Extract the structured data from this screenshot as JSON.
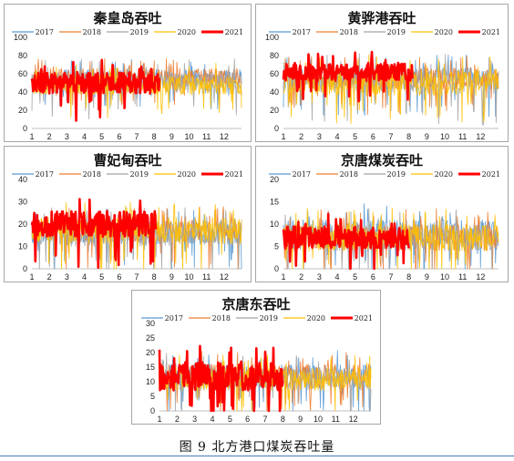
{
  "chart_data": [
    {
      "type": "line",
      "title": "秦皇岛吞吐",
      "categories": [
        "1",
        "2",
        "3",
        "4",
        "5",
        "6",
        "7",
        "8",
        "9",
        "10",
        "11",
        "12"
      ],
      "ylim": [
        0,
        100
      ],
      "yticks": [
        0,
        20,
        40,
        60,
        80,
        100
      ],
      "grid": false,
      "legend_position": "top",
      "series": [
        {
          "name": "2017",
          "color": "#5b9bd5",
          "typical": 55,
          "spread": 10,
          "end_month": 13
        },
        {
          "name": "2018",
          "color": "#ed7d31",
          "typical": 57,
          "spread": 9,
          "end_month": 13
        },
        {
          "name": "2019",
          "color": "#a5a5a5",
          "typical": 50,
          "spread": 12,
          "end_month": 13
        },
        {
          "name": "2020",
          "color": "#ffc000",
          "typical": 48,
          "spread": 11,
          "end_month": 13
        },
        {
          "name": "2021",
          "color": "#ff0000",
          "typical": 50,
          "spread": 12,
          "end_month": 8.3
        }
      ]
    },
    {
      "type": "line",
      "title": "黄骅港吞吐",
      "categories": [
        "1",
        "2",
        "3",
        "4",
        "5",
        "6",
        "7",
        "8",
        "9",
        "10",
        "11",
        "12"
      ],
      "ylim": [
        0,
        100
      ],
      "yticks": [
        0,
        20,
        40,
        60,
        80,
        100
      ],
      "grid": false,
      "legend_position": "top",
      "series": [
        {
          "name": "2017",
          "color": "#5b9bd5",
          "typical": 55,
          "spread": 12,
          "end_month": 13
        },
        {
          "name": "2018",
          "color": "#ed7d31",
          "typical": 55,
          "spread": 12,
          "end_month": 13
        },
        {
          "name": "2019",
          "color": "#a5a5a5",
          "typical": 52,
          "spread": 14,
          "end_month": 13
        },
        {
          "name": "2020",
          "color": "#ffc000",
          "typical": 50,
          "spread": 14,
          "end_month": 13
        },
        {
          "name": "2021",
          "color": "#ff0000",
          "typical": 62,
          "spread": 10,
          "end_month": 8.2
        }
      ]
    },
    {
      "type": "line",
      "title": "曹妃甸吞吐",
      "categories": [
        "1",
        "2",
        "3",
        "4",
        "5",
        "6",
        "7",
        "8",
        "9",
        "10",
        "11",
        "12"
      ],
      "ylim": [
        0,
        40
      ],
      "yticks": [
        0,
        10,
        20,
        30,
        40
      ],
      "grid": false,
      "legend_position": "top",
      "series": [
        {
          "name": "2017",
          "color": "#5b9bd5",
          "typical": 16,
          "spread": 5,
          "end_month": 13
        },
        {
          "name": "2018",
          "color": "#ed7d31",
          "typical": 17,
          "spread": 5,
          "end_month": 13
        },
        {
          "name": "2019",
          "color": "#a5a5a5",
          "typical": 16,
          "spread": 6,
          "end_month": 13
        },
        {
          "name": "2020",
          "color": "#ffc000",
          "typical": 17,
          "spread": 6,
          "end_month": 13
        },
        {
          "name": "2021",
          "color": "#ff0000",
          "typical": 20,
          "spread": 6,
          "end_month": 8.1
        }
      ]
    },
    {
      "type": "line",
      "title": "京唐煤炭吞吐",
      "categories": [
        "1",
        "2",
        "3",
        "4",
        "5",
        "6",
        "7",
        "8",
        "9",
        "10",
        "11",
        "12"
      ],
      "ylim": [
        0,
        20
      ],
      "yticks": [
        0,
        5,
        10,
        15,
        20
      ],
      "grid": false,
      "legend_position": "top",
      "series": [
        {
          "name": "2017",
          "color": "#5b9bd5",
          "typical": 8,
          "spread": 3,
          "end_month": 13
        },
        {
          "name": "2018",
          "color": "#ed7d31",
          "typical": 7,
          "spread": 3,
          "end_month": 13
        },
        {
          "name": "2019",
          "color": "#a5a5a5",
          "typical": 7,
          "spread": 3,
          "end_month": 13
        },
        {
          "name": "2020",
          "color": "#ffc000",
          "typical": 7,
          "spread": 3,
          "end_month": 13
        },
        {
          "name": "2021",
          "color": "#ff0000",
          "typical": 7,
          "spread": 2.5,
          "end_month": 8.0
        }
      ]
    },
    {
      "type": "line",
      "title": "京唐东吞吐",
      "categories": [
        "1",
        "2",
        "3",
        "4",
        "5",
        "6",
        "7",
        "8",
        "9",
        "10",
        "11",
        "12"
      ],
      "ylim": [
        0,
        30
      ],
      "yticks": [
        0,
        5,
        10,
        15,
        20,
        25,
        30
      ],
      "grid": false,
      "legend_position": "top",
      "series": [
        {
          "name": "2017",
          "color": "#5b9bd5",
          "typical": 12,
          "spread": 4,
          "end_month": 13
        },
        {
          "name": "2018",
          "color": "#ed7d31",
          "typical": 12,
          "spread": 4,
          "end_month": 13
        },
        {
          "name": "2019",
          "color": "#a5a5a5",
          "typical": 11,
          "spread": 4,
          "end_month": 13
        },
        {
          "name": "2020",
          "color": "#ffc000",
          "typical": 11,
          "spread": 4,
          "end_month": 13
        },
        {
          "name": "2021",
          "color": "#ff0000",
          "typical": 12,
          "spread": 5,
          "end_month": 8.0
        }
      ]
    }
  ],
  "caption": "图 9  北方港口煤炭吞吐量"
}
